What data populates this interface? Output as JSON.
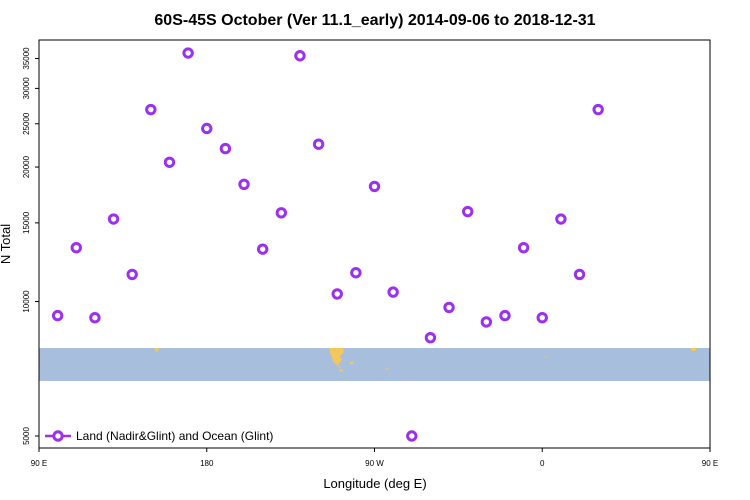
{
  "chart_data": {
    "type": "scatter",
    "title": "60S-45S October (Ver 11.1_early)   2014-09-06 to 2018-12-31",
    "xlabel": "Longitude (deg E)",
    "ylabel": "N Total",
    "y_scale": "log",
    "ylim": [
      4700,
      38500
    ],
    "x_ticks": [
      "90 E",
      "180",
      "90 W",
      "0",
      "90 E",
      "180"
    ],
    "y_ticks": [
      "5000",
      "10000",
      "15000",
      "20000",
      "25000",
      "30000",
      "35000"
    ],
    "y_tick_values": [
      5000,
      10000,
      15000,
      20000,
      25000,
      30000,
      35000
    ],
    "grid": false,
    "legend_position": "bottom-left",
    "band": {
      "lat_range": "60S-45S",
      "ocean_color": "#a8bedd",
      "land_color": "#f2c75c"
    },
    "series": [
      {
        "name": "Land (Nadir&Glint) and Ocean (Glint)",
        "color": "#9b30f0",
        "marker": "circle-open",
        "points": [
          {
            "lon": 100,
            "n": 9300
          },
          {
            "lon": 110,
            "n": 13200
          },
          {
            "lon": 120,
            "n": 9200
          },
          {
            "lon": 130,
            "n": 15300
          },
          {
            "lon": 140,
            "n": 11500
          },
          {
            "lon": 150,
            "n": 26900
          },
          {
            "lon": 160,
            "n": 20500
          },
          {
            "lon": 170,
            "n": 36000
          },
          {
            "lon": 180,
            "n": 24400
          },
          {
            "lon": 190,
            "n": 22000
          },
          {
            "lon": 200,
            "n": 18300
          },
          {
            "lon": 210,
            "n": 13100
          },
          {
            "lon": 220,
            "n": 15800
          },
          {
            "lon": 230,
            "n": 35500
          },
          {
            "lon": 240,
            "n": 22500
          },
          {
            "lon": 250,
            "n": 10400
          },
          {
            "lon": 260,
            "n": 11600
          },
          {
            "lon": 270,
            "n": 18100
          },
          {
            "lon": 280,
            "n": 10500
          },
          {
            "lon": 290,
            "n": 5000
          },
          {
            "lon": 300,
            "n": 8300
          },
          {
            "lon": 310,
            "n": 9700
          },
          {
            "lon": 320,
            "n": 15900
          },
          {
            "lon": 330,
            "n": 9000
          },
          {
            "lon": 340,
            "n": 9300
          },
          {
            "lon": 350,
            "n": 13200
          },
          {
            "lon": 360,
            "n": 9200
          },
          {
            "lon": 370,
            "n": 15300
          },
          {
            "lon": 380,
            "n": 11500
          },
          {
            "lon": 390,
            "n": 26900
          }
        ]
      }
    ]
  }
}
